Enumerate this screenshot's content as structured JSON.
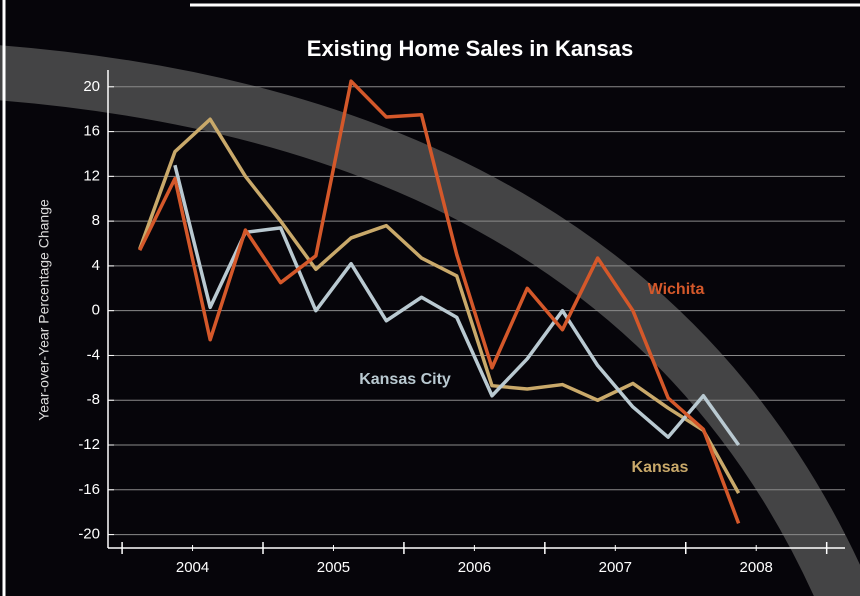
{
  "chart_data": {
    "type": "line",
    "title": "Existing Home Sales in Kansas",
    "y_label": "Year-over-Year Percentage Change",
    "x": [
      2004.125,
      2004.375,
      2004.625,
      2004.875,
      2005.125,
      2005.375,
      2005.625,
      2005.875,
      2006.125,
      2006.375,
      2006.625,
      2006.875,
      2007.125,
      2007.375,
      2007.625,
      2007.875,
      2008.125,
      2008.375
    ],
    "series": [
      {
        "name": "Kansas",
        "color": "#c9a96a",
        "values": [
          5.5,
          14.2,
          17.1,
          12,
          8,
          3.7,
          6.5,
          7.6,
          4.7,
          3.1,
          -6.7,
          -7,
          -6.6,
          -8,
          -6.5,
          -8.7,
          -10.7,
          -16.3
        ]
      },
      {
        "name": "Kansas City",
        "color": "#b9c9d1",
        "values": [
          null,
          13,
          0.3,
          7,
          7.4,
          0,
          4.2,
          -0.9,
          1.2,
          -0.6,
          -7.6,
          -4.3,
          0,
          -4.9,
          -8.6,
          -11.3,
          -7.6,
          -12
        ]
      },
      {
        "name": "Wichita",
        "color": "#d4582a",
        "values": [
          5.4,
          11.8,
          -2.6,
          7.2,
          2.5,
          4.9,
          20.5,
          17.3,
          17.5,
          5,
          -5.1,
          2,
          -1.7,
          4.7,
          0,
          -7.8,
          -10.6,
          -19
        ]
      }
    ],
    "xlim": [
      2003.9,
      2009.13
    ],
    "xticks": [
      {
        "value": 2004.5,
        "label": "2004"
      },
      {
        "value": 2005.5,
        "label": "2005"
      },
      {
        "value": 2006.5,
        "label": "2006"
      },
      {
        "value": 2007.5,
        "label": "2007"
      },
      {
        "value": 2008.5,
        "label": "2008"
      }
    ],
    "x_boundary_ticks": [
      2004,
      2005,
      2006,
      2007,
      2008,
      2009
    ],
    "ylim": [
      -21.2,
      21.5
    ],
    "yticks": [
      20,
      16,
      12,
      8,
      4,
      0,
      -4,
      -8,
      -12,
      -16,
      -20
    ],
    "grid": true
  }
}
